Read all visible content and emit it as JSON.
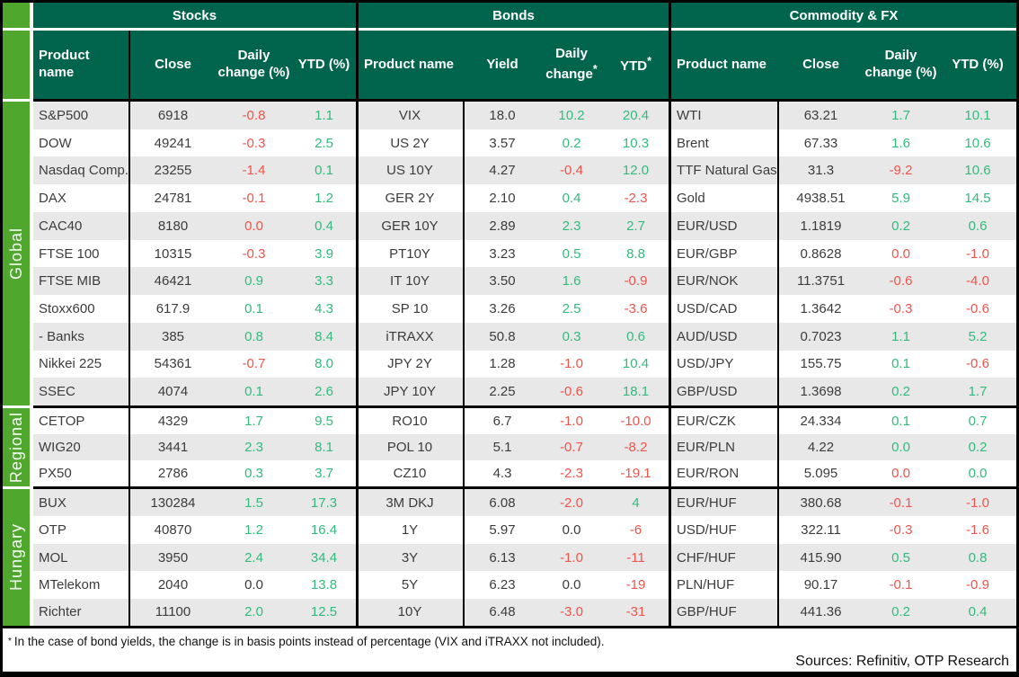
{
  "colors": {
    "header_green": "#00654c",
    "strip_green": "#4fa72e",
    "positive": "#33ba7c",
    "negative": "#f0544c",
    "row_alt": "#e8e8e8"
  },
  "footnote": {
    "marker": "*",
    "text": "In the case of bond yields, the change is in basis points instead of percentage (VIX and iTRAXX not included)."
  },
  "sources": "Sources: Refinitiv, OTP Research",
  "chart_data": {
    "type": "table",
    "sections": [
      {
        "title": "Stocks",
        "columns": [
          {
            "label": "Product name"
          },
          {
            "label": "Close"
          },
          {
            "label": "Daily change (%)"
          },
          {
            "label": "YTD (%)"
          }
        ]
      },
      {
        "title": "Bonds",
        "columns": [
          {
            "label": "Product name"
          },
          {
            "label": "Yield"
          },
          {
            "label": "Daily change",
            "sup": "*"
          },
          {
            "label": "YTD",
            "sup": "*"
          }
        ]
      },
      {
        "title": "Commodity & FX",
        "columns": [
          {
            "label": "Product name"
          },
          {
            "label": "Close"
          },
          {
            "label": "Daily change (%)"
          },
          {
            "label": "YTD (%)"
          }
        ]
      }
    ],
    "groups": [
      {
        "label": "Global",
        "rows": [
          [
            {
              "name": "S&P500",
              "value": "6918",
              "daily": "-0.8",
              "daily_color": "neg",
              "ytd": "1.1",
              "ytd_color": "pos"
            },
            {
              "name": "VIX",
              "value": "18.0",
              "daily": "10.2",
              "daily_color": "pos",
              "ytd": "20.4",
              "ytd_color": "pos"
            },
            {
              "name": "WTI",
              "value": "63.21",
              "daily": "1.7",
              "daily_color": "pos",
              "ytd": "10.1",
              "ytd_color": "pos"
            }
          ],
          [
            {
              "name": "DOW",
              "value": "49241",
              "daily": "-0.3",
              "daily_color": "neg",
              "ytd": "2.5",
              "ytd_color": "pos"
            },
            {
              "name": "US 2Y",
              "value": "3.57",
              "daily": "0.2",
              "daily_color": "pos",
              "ytd": "10.3",
              "ytd_color": "pos"
            },
            {
              "name": "Brent",
              "value": "67.33",
              "daily": "1.6",
              "daily_color": "pos",
              "ytd": "10.6",
              "ytd_color": "pos"
            }
          ],
          [
            {
              "name": "Nasdaq Comp.",
              "value": "23255",
              "daily": "-1.4",
              "daily_color": "neg",
              "ytd": "0.1",
              "ytd_color": "pos"
            },
            {
              "name": "US 10Y",
              "value": "4.27",
              "daily": "-0.4",
              "daily_color": "neg",
              "ytd": "12.0",
              "ytd_color": "pos"
            },
            {
              "name": "TTF Natural Gas",
              "value": "31.3",
              "daily": "-9.2",
              "daily_color": "neg",
              "ytd": "10.6",
              "ytd_color": "pos"
            }
          ],
          [
            {
              "name": "DAX",
              "value": "24781",
              "daily": "-0.1",
              "daily_color": "neg",
              "ytd": "1.2",
              "ytd_color": "pos"
            },
            {
              "name": "GER 2Y",
              "value": "2.10",
              "daily": "0.4",
              "daily_color": "pos",
              "ytd": "-2.3",
              "ytd_color": "neg"
            },
            {
              "name": "Gold",
              "value": "4938.51",
              "daily": "5.9",
              "daily_color": "pos",
              "ytd": "14.5",
              "ytd_color": "pos"
            }
          ],
          [
            {
              "name": "CAC40",
              "value": "8180",
              "daily": "0.0",
              "daily_color": "neg",
              "ytd": "0.4",
              "ytd_color": "pos"
            },
            {
              "name": "GER 10Y",
              "value": "2.89",
              "daily": "2.3",
              "daily_color": "pos",
              "ytd": "2.7",
              "ytd_color": "pos"
            },
            {
              "name": "EUR/USD",
              "value": "1.1819",
              "daily": "0.2",
              "daily_color": "pos",
              "ytd": "0.6",
              "ytd_color": "pos"
            }
          ],
          [
            {
              "name": "FTSE 100",
              "value": "10315",
              "daily": "-0.3",
              "daily_color": "neg",
              "ytd": "3.9",
              "ytd_color": "pos"
            },
            {
              "name": "PT10Y",
              "value": "3.23",
              "daily": "0.5",
              "daily_color": "pos",
              "ytd": "8.8",
              "ytd_color": "pos"
            },
            {
              "name": "EUR/GBP",
              "value": "0.8628",
              "daily": "0.0",
              "daily_color": "neg",
              "ytd": "-1.0",
              "ytd_color": "neg"
            }
          ],
          [
            {
              "name": "FTSE MIB",
              "value": "46421",
              "daily": "0.9",
              "daily_color": "pos",
              "ytd": "3.3",
              "ytd_color": "pos"
            },
            {
              "name": "IT 10Y",
              "value": "3.50",
              "daily": "1.6",
              "daily_color": "pos",
              "ytd": "-0.9",
              "ytd_color": "neg"
            },
            {
              "name": "EUR/NOK",
              "value": "11.3751",
              "daily": "-0.6",
              "daily_color": "neg",
              "ytd": "-4.0",
              "ytd_color": "neg"
            }
          ],
          [
            {
              "name": "Stoxx600",
              "value": "617.9",
              "daily": "0.1",
              "daily_color": "pos",
              "ytd": "4.3",
              "ytd_color": "pos"
            },
            {
              "name": "SP 10",
              "value": "3.26",
              "daily": "2.5",
              "daily_color": "pos",
              "ytd": "-3.6",
              "ytd_color": "neg"
            },
            {
              "name": "USD/CAD",
              "value": "1.3642",
              "daily": "-0.3",
              "daily_color": "neg",
              "ytd": "-0.6",
              "ytd_color": "neg"
            }
          ],
          [
            {
              "name": "- Banks",
              "value": "385",
              "daily": "0.8",
              "daily_color": "pos",
              "ytd": "8.4",
              "ytd_color": "pos"
            },
            {
              "name": "iTRAXX",
              "value": "50.8",
              "daily": "0.3",
              "daily_color": "pos",
              "ytd": "0.6",
              "ytd_color": "pos"
            },
            {
              "name": "AUD/USD",
              "value": "0.7023",
              "daily": "1.1",
              "daily_color": "pos",
              "ytd": "5.2",
              "ytd_color": "pos"
            }
          ],
          [
            {
              "name": "Nikkei 225",
              "value": "54361",
              "daily": "-0.7",
              "daily_color": "neg",
              "ytd": "8.0",
              "ytd_color": "pos"
            },
            {
              "name": "JPY 2Y",
              "value": "1.28",
              "daily": "-1.0",
              "daily_color": "neg",
              "ytd": "10.4",
              "ytd_color": "pos"
            },
            {
              "name": "USD/JPY",
              "value": "155.75",
              "daily": "0.1",
              "daily_color": "pos",
              "ytd": "-0.6",
              "ytd_color": "neg"
            }
          ],
          [
            {
              "name": "SSEC",
              "value": "4074",
              "daily": "0.1",
              "daily_color": "pos",
              "ytd": "2.6",
              "ytd_color": "pos"
            },
            {
              "name": "JPY 10Y",
              "value": "2.25",
              "daily": "-0.6",
              "daily_color": "neg",
              "ytd": "18.1",
              "ytd_color": "pos"
            },
            {
              "name": "GBP/USD",
              "value": "1.3698",
              "daily": "0.2",
              "daily_color": "pos",
              "ytd": "1.7",
              "ytd_color": "pos"
            }
          ]
        ]
      },
      {
        "label": "Regional",
        "rows": [
          [
            {
              "name": "CETOP",
              "value": "4329",
              "daily": "1.7",
              "daily_color": "pos",
              "ytd": "9.5",
              "ytd_color": "pos"
            },
            {
              "name": "RO10",
              "value": "6.7",
              "daily": "-1.0",
              "daily_color": "neg",
              "ytd": "-10.0",
              "ytd_color": "neg"
            },
            {
              "name": "EUR/CZK",
              "value": "24.334",
              "daily": "0.1",
              "daily_color": "pos",
              "ytd": "0.7",
              "ytd_color": "pos"
            }
          ],
          [
            {
              "name": "WIG20",
              "value": "3441",
              "daily": "2.3",
              "daily_color": "pos",
              "ytd": "8.1",
              "ytd_color": "pos"
            },
            {
              "name": "POL 10",
              "value": "5.1",
              "daily": "-0.7",
              "daily_color": "neg",
              "ytd": "-8.2",
              "ytd_color": "neg"
            },
            {
              "name": "EUR/PLN",
              "value": "4.22",
              "daily": "0.0",
              "daily_color": "pos",
              "ytd": "0.2",
              "ytd_color": "pos"
            }
          ],
          [
            {
              "name": "PX50",
              "value": "2786",
              "daily": "0.3",
              "daily_color": "pos",
              "ytd": "3.7",
              "ytd_color": "pos"
            },
            {
              "name": "CZ10",
              "value": "4.3",
              "daily": "-2.3",
              "daily_color": "neg",
              "ytd": "-19.1",
              "ytd_color": "neg"
            },
            {
              "name": "EUR/RON",
              "value": "5.095",
              "daily": "0.0",
              "daily_color": "neg",
              "ytd": "0.0",
              "ytd_color": "pos"
            }
          ]
        ]
      },
      {
        "label": "Hungary",
        "rows": [
          [
            {
              "name": "BUX",
              "value": "130284",
              "daily": "1.5",
              "daily_color": "pos",
              "ytd": "17.3",
              "ytd_color": "pos"
            },
            {
              "name": "3M DKJ",
              "value": "6.08",
              "daily": "-2.0",
              "daily_color": "neg",
              "ytd": "4",
              "ytd_color": "pos"
            },
            {
              "name": "EUR/HUF",
              "value": "380.68",
              "daily": "-0.1",
              "daily_color": "neg",
              "ytd": "-1.0",
              "ytd_color": "neg"
            }
          ],
          [
            {
              "name": "OTP",
              "value": "40870",
              "daily": "1.2",
              "daily_color": "pos",
              "ytd": "16.4",
              "ytd_color": "pos"
            },
            {
              "name": "1Y",
              "value": "5.97",
              "daily": "0.0",
              "daily_color": "neu",
              "ytd": "-6",
              "ytd_color": "neg"
            },
            {
              "name": "USD/HUF",
              "value": "322.11",
              "daily": "-0.3",
              "daily_color": "neg",
              "ytd": "-1.6",
              "ytd_color": "neg"
            }
          ],
          [
            {
              "name": "MOL",
              "value": "3950",
              "daily": "2.4",
              "daily_color": "pos",
              "ytd": "34.4",
              "ytd_color": "pos"
            },
            {
              "name": "3Y",
              "value": "6.13",
              "daily": "-1.0",
              "daily_color": "neg",
              "ytd": "-11",
              "ytd_color": "neg"
            },
            {
              "name": "CHF/HUF",
              "value": "415.90",
              "daily": "0.5",
              "daily_color": "pos",
              "ytd": "0.8",
              "ytd_color": "pos"
            }
          ],
          [
            {
              "name": "MTelekom",
              "value": "2040",
              "daily": "0.0",
              "daily_color": "neu",
              "ytd": "13.8",
              "ytd_color": "pos"
            },
            {
              "name": "5Y",
              "value": "6.23",
              "daily": "0.0",
              "daily_color": "neu",
              "ytd": "-19",
              "ytd_color": "neg"
            },
            {
              "name": "PLN/HUF",
              "value": "90.17",
              "daily": "-0.1",
              "daily_color": "neg",
              "ytd": "-0.9",
              "ytd_color": "neg"
            }
          ],
          [
            {
              "name": "Richter",
              "value": "11100",
              "daily": "2.0",
              "daily_color": "pos",
              "ytd": "12.5",
              "ytd_color": "pos"
            },
            {
              "name": "10Y",
              "value": "6.48",
              "daily": "-3.0",
              "daily_color": "neg",
              "ytd": "-31",
              "ytd_color": "neg"
            },
            {
              "name": "GBP/HUF",
              "value": "441.36",
              "daily": "0.2",
              "daily_color": "pos",
              "ytd": "0.4",
              "ytd_color": "pos"
            }
          ]
        ]
      }
    ]
  }
}
